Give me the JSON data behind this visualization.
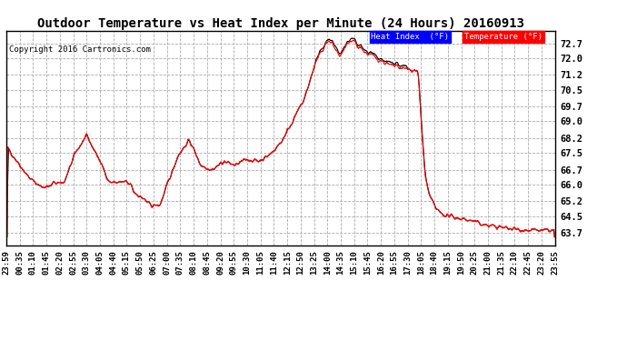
{
  "title": "Outdoor Temperature vs Heat Index per Minute (24 Hours) 20160913",
  "copyright": "Copyright 2016 Cartronics.com",
  "yticks": [
    63.7,
    64.5,
    65.2,
    66.0,
    66.7,
    67.5,
    68.2,
    69.0,
    69.7,
    70.5,
    71.2,
    72.0,
    72.7
  ],
  "ylim": [
    63.1,
    73.3
  ],
  "bg_color": "#ffffff",
  "plot_bg_color": "#ffffff",
  "temp_color": "#ff0000",
  "heat_color": "#000000",
  "xtick_labels": [
    "23:59",
    "00:35",
    "01:10",
    "01:45",
    "02:20",
    "02:55",
    "03:30",
    "04:05",
    "04:40",
    "05:15",
    "05:50",
    "06:25",
    "07:00",
    "07:35",
    "08:10",
    "08:45",
    "09:20",
    "09:55",
    "10:30",
    "11:05",
    "11:40",
    "12:15",
    "12:50",
    "13:25",
    "14:00",
    "14:35",
    "15:10",
    "15:45",
    "16:20",
    "16:55",
    "17:30",
    "18:05",
    "18:40",
    "19:15",
    "19:50",
    "20:25",
    "21:00",
    "21:35",
    "22:10",
    "22:45",
    "23:20",
    "23:55"
  ],
  "legend_heat_label": "Heat Index  (°F)",
  "legend_temp_label": "Temperature (°F)",
  "legend_heat_bg": "#0000ff",
  "legend_temp_bg": "#ff0000"
}
